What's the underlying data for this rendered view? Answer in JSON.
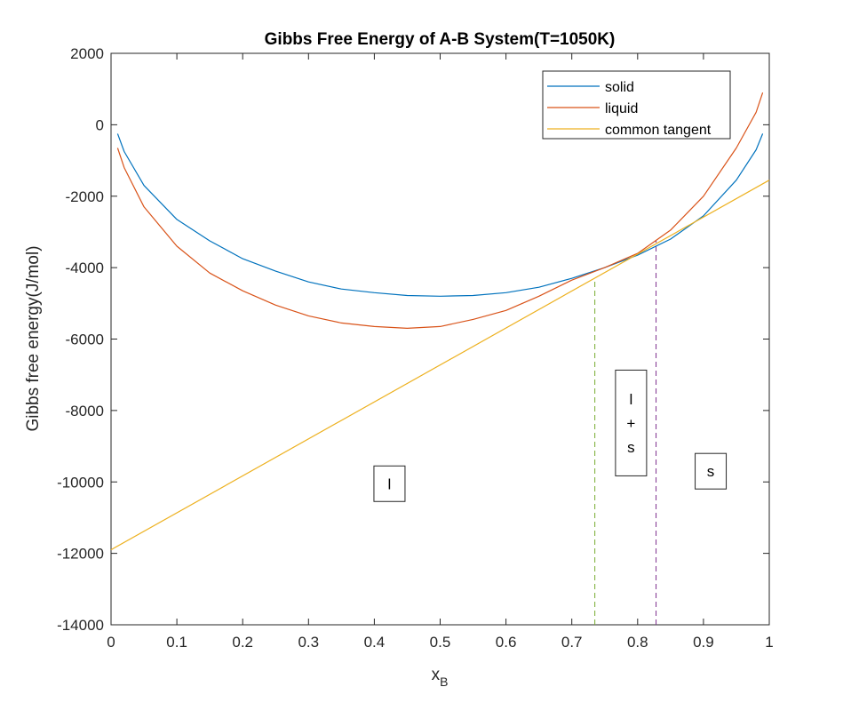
{
  "chart_data": {
    "type": "line",
    "title": "Gibbs Free Energy of A-B System(T=1050K)",
    "xlabel_main": "x",
    "xlabel_sub": "B",
    "ylabel": "Gibbs free energy(J/mol)",
    "xlim": [
      0,
      1
    ],
    "ylim": [
      -14000,
      2000
    ],
    "xticks": [
      0,
      0.1,
      0.2,
      0.3,
      0.4,
      0.5,
      0.6,
      0.7,
      0.8,
      0.9,
      1
    ],
    "xtick_labels": [
      "0",
      "0.1",
      "0.2",
      "0.3",
      "0.4",
      "0.5",
      "0.6",
      "0.7",
      "0.8",
      "0.9",
      "1"
    ],
    "yticks": [
      -14000,
      -12000,
      -10000,
      -8000,
      -6000,
      -4000,
      -2000,
      0,
      2000
    ],
    "ytick_labels": [
      "-14000",
      "-12000",
      "-10000",
      "-8000",
      "-6000",
      "-4000",
      "-2000",
      "0",
      "2000"
    ],
    "grid": false,
    "legend_position": "top-right",
    "series": [
      {
        "name": "solid",
        "color": "#0072BD",
        "x": [
          0.01,
          0.02,
          0.05,
          0.1,
          0.15,
          0.2,
          0.25,
          0.3,
          0.35,
          0.4,
          0.45,
          0.5,
          0.55,
          0.6,
          0.65,
          0.7,
          0.75,
          0.8,
          0.85,
          0.9,
          0.95,
          0.98,
          0.99
        ],
        "y": [
          -250,
          -750,
          -1700,
          -2650,
          -3250,
          -3750,
          -4100,
          -4400,
          -4600,
          -4700,
          -4780,
          -4800,
          -4780,
          -4700,
          -4550,
          -4300,
          -4000,
          -3650,
          -3200,
          -2550,
          -1550,
          -700,
          -250
        ]
      },
      {
        "name": "liquid",
        "color": "#D95319",
        "x": [
          0.01,
          0.02,
          0.05,
          0.1,
          0.15,
          0.2,
          0.25,
          0.3,
          0.35,
          0.4,
          0.45,
          0.5,
          0.55,
          0.6,
          0.65,
          0.7,
          0.75,
          0.8,
          0.85,
          0.9,
          0.95,
          0.98,
          0.99
        ],
        "y": [
          -650,
          -1200,
          -2300,
          -3400,
          -4150,
          -4650,
          -5050,
          -5350,
          -5550,
          -5650,
          -5700,
          -5650,
          -5450,
          -5200,
          -4800,
          -4350,
          -4000,
          -3600,
          -2950,
          -2000,
          -650,
          350,
          900
        ]
      },
      {
        "name": "common tangent",
        "color": "#EDB120",
        "x": [
          0,
          1
        ],
        "y": [
          -11900,
          -1550
        ]
      }
    ],
    "vlines": [
      {
        "x": 0.735,
        "y_top": -4300,
        "color": "#77AC30",
        "style": "dashed"
      },
      {
        "x": 0.828,
        "y_top": -3250,
        "color": "#7E2F8E",
        "style": "dashed"
      }
    ],
    "annotations": [
      {
        "lines": [
          "l"
        ],
        "x": 0.423,
        "y": -10050
      },
      {
        "lines": [
          "l",
          "+",
          "s"
        ],
        "x": 0.79,
        "y": -8350
      },
      {
        "lines": [
          "s"
        ],
        "x": 0.911,
        "y": -9700
      }
    ]
  }
}
